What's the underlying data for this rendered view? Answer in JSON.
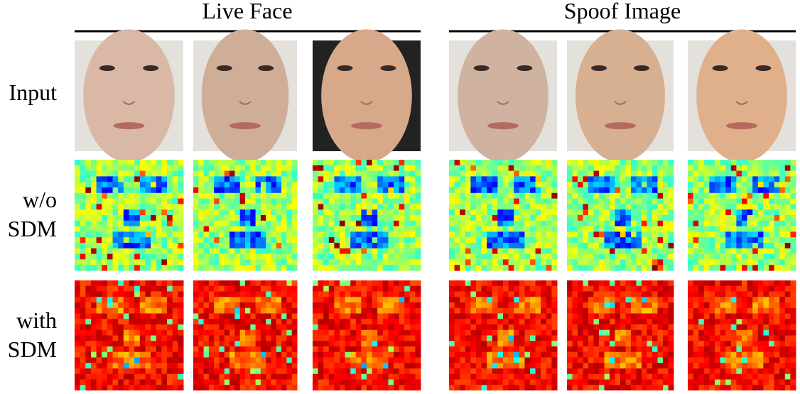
{
  "header": {
    "groups": [
      "Live Face",
      "Spoof Image"
    ]
  },
  "rows": [
    {
      "label_lines": [
        "Input"
      ]
    },
    {
      "label_lines": [
        "w/o",
        "SDM"
      ]
    },
    {
      "label_lines": [
        "with",
        "SDM"
      ]
    }
  ]
}
